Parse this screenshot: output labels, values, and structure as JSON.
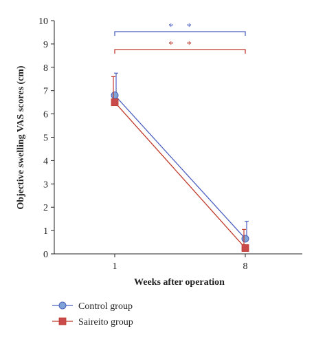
{
  "chart_data": {
    "type": "line",
    "xlabel": "Weeks after operation",
    "ylabel": "Objective swelling VAS scores (cm)",
    "categories": [
      "1",
      "8"
    ],
    "ylim": [
      0,
      10
    ],
    "yticks": [
      "0",
      "1",
      "2",
      "3",
      "4",
      "5",
      "6",
      "7",
      "8",
      "9",
      "10"
    ],
    "grid": false,
    "legend_position": "bottom-left",
    "series": [
      {
        "name": "Control group",
        "values": [
          6.8,
          0.65
        ],
        "error_upper": [
          0.95,
          0.75
        ],
        "marker": "circle",
        "color": "#4a5fc1",
        "marker_color": "#7fa3d6"
      },
      {
        "name": "Saireito group",
        "values": [
          6.5,
          0.25
        ],
        "error_upper": [
          1.1,
          0.8
        ],
        "marker": "square",
        "color": "#c0392b",
        "marker_color": "#c94a4a"
      }
    ],
    "annotations": [
      {
        "text": "* *",
        "series": "Control group",
        "from": "1",
        "to": "8",
        "color": "#4a5fc1"
      },
      {
        "text": "* *",
        "series": "Saireito group",
        "from": "1",
        "to": "8",
        "color": "#c0392b"
      }
    ]
  }
}
